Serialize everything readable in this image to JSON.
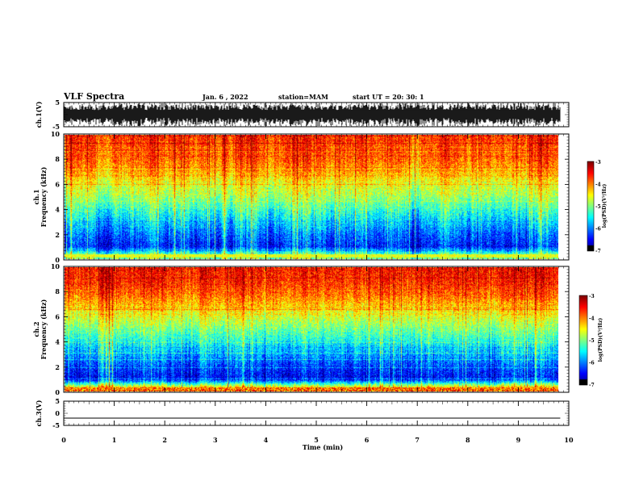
{
  "header": {
    "title": "VLF Spectra",
    "date": "Jan. 6 , 2022",
    "station": "station=MAM",
    "start": "start UT = 20: 30: 1"
  },
  "chart_data": [
    {
      "type": "line",
      "name": "waveform",
      "ylabel": "ch.1(V)",
      "ylim": [
        -5,
        5
      ],
      "yticks": [
        "5",
        "-5"
      ],
      "xlim": [
        0,
        10
      ],
      "note_data": "dense broadband waveform filling most of the -5..5 range"
    },
    {
      "type": "heatmap",
      "ylabel_channel": "ch.1",
      "ylabel": "Frequency (kHz)",
      "ylim": [
        0,
        10
      ],
      "yticks": [
        "0",
        "2",
        "4",
        "6",
        "8",
        "10"
      ],
      "xlim": [
        0,
        9.83
      ],
      "colorbar": {
        "label": "log(PSD)(V²/Hz)",
        "range": [
          -7,
          -3
        ],
        "ticks": [
          "-3",
          "-4",
          "-5",
          "-6",
          "-7"
        ]
      },
      "profile_kHz_vs_logPSD": [
        [
          0.3,
          -5.0
        ],
        [
          1.0,
          -6.4
        ],
        [
          2.0,
          -6.1
        ],
        [
          3.0,
          -5.7
        ],
        [
          4.0,
          -5.3
        ],
        [
          5.0,
          -4.9
        ],
        [
          6.0,
          -4.6
        ],
        [
          7.0,
          -4.2
        ],
        [
          8.0,
          -3.9
        ],
        [
          9.0,
          -3.8
        ],
        [
          10.0,
          -3.7
        ]
      ]
    },
    {
      "type": "heatmap",
      "ylabel_channel": "ch.2",
      "ylabel": "Frequency (kHz)",
      "ylim": [
        0,
        10
      ],
      "yticks": [
        "0",
        "2",
        "4",
        "6",
        "8",
        "10"
      ],
      "xlim": [
        0,
        9.83
      ],
      "colorbar": {
        "label": "log(PSD)(V²/Hz)",
        "range": [
          -7,
          -3
        ],
        "ticks": [
          "-3",
          "-4",
          "-5",
          "-6",
          "-7"
        ]
      },
      "profile_kHz_vs_logPSD": [
        [
          0.3,
          -4.2
        ],
        [
          1.0,
          -6.5
        ],
        [
          2.0,
          -6.2
        ],
        [
          3.0,
          -5.8
        ],
        [
          4.0,
          -5.4
        ],
        [
          5.0,
          -5.0
        ],
        [
          6.0,
          -4.6
        ],
        [
          7.0,
          -4.2
        ],
        [
          8.0,
          -3.8
        ],
        [
          9.0,
          -3.6
        ],
        [
          10.0,
          -3.5
        ]
      ]
    },
    {
      "type": "line",
      "name": "waveform",
      "ylabel": "ch.3(V)",
      "ylim": [
        -5,
        5
      ],
      "yticks": [
        "5",
        "0",
        "-5"
      ],
      "xlim": [
        0,
        10
      ],
      "values_const": -2
    }
  ],
  "xaxis": {
    "label": "Time (min)",
    "range": [
      0,
      10
    ],
    "ticks": [
      "0",
      "1",
      "2",
      "3",
      "4",
      "5",
      "6",
      "7",
      "8",
      "9",
      "10"
    ]
  },
  "colors": {
    "colormap": [
      "#000080",
      "#0000ff",
      "#00ffff",
      "#00ff00",
      "#ffff00",
      "#ff8000",
      "#ff0000"
    ],
    "frame": "#000000"
  }
}
